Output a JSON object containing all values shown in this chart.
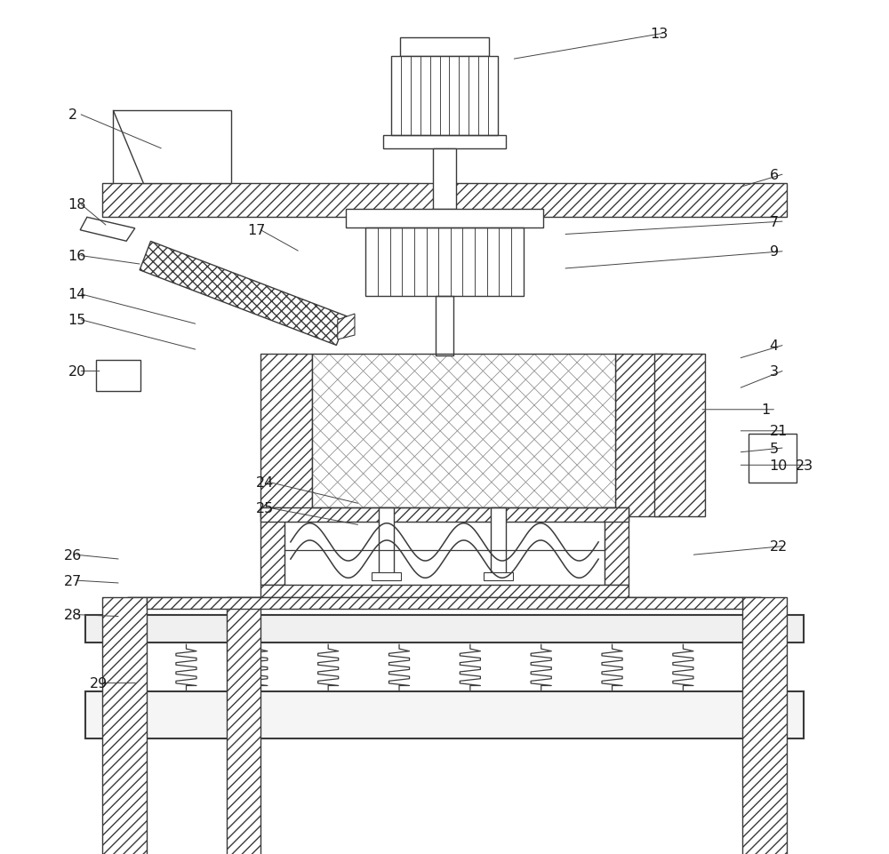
{
  "bg_color": "#ffffff",
  "lc": "#3a3a3a",
  "figsize": [
    10.0,
    9.62
  ],
  "dpi": 100,
  "label_data": [
    [
      1,
      0.87,
      0.48,
      0.8,
      0.48
    ],
    [
      2,
      0.06,
      0.135,
      0.17,
      0.175
    ],
    [
      3,
      0.88,
      0.435,
      0.845,
      0.455
    ],
    [
      4,
      0.88,
      0.405,
      0.845,
      0.42
    ],
    [
      5,
      0.88,
      0.525,
      0.845,
      0.53
    ],
    [
      6,
      0.88,
      0.205,
      0.845,
      0.22
    ],
    [
      7,
      0.88,
      0.26,
      0.64,
      0.275
    ],
    [
      9,
      0.88,
      0.295,
      0.64,
      0.315
    ],
    [
      10,
      0.88,
      0.545,
      0.845,
      0.545
    ],
    [
      13,
      0.74,
      0.04,
      0.58,
      0.07
    ],
    [
      14,
      0.06,
      0.345,
      0.21,
      0.38
    ],
    [
      15,
      0.06,
      0.375,
      0.21,
      0.41
    ],
    [
      16,
      0.06,
      0.3,
      0.145,
      0.31
    ],
    [
      17,
      0.27,
      0.27,
      0.33,
      0.295
    ],
    [
      18,
      0.06,
      0.24,
      0.105,
      0.265
    ],
    [
      20,
      0.06,
      0.435,
      0.098,
      0.435
    ],
    [
      21,
      0.88,
      0.505,
      0.845,
      0.505
    ],
    [
      22,
      0.88,
      0.64,
      0.79,
      0.65
    ],
    [
      23,
      0.91,
      0.545,
      0.895,
      0.545
    ],
    [
      24,
      0.28,
      0.565,
      0.4,
      0.59
    ],
    [
      25,
      0.28,
      0.595,
      0.4,
      0.615
    ],
    [
      26,
      0.055,
      0.65,
      0.12,
      0.655
    ],
    [
      27,
      0.055,
      0.68,
      0.12,
      0.683
    ],
    [
      28,
      0.055,
      0.72,
      0.12,
      0.722
    ],
    [
      29,
      0.085,
      0.8,
      0.14,
      0.8
    ]
  ]
}
